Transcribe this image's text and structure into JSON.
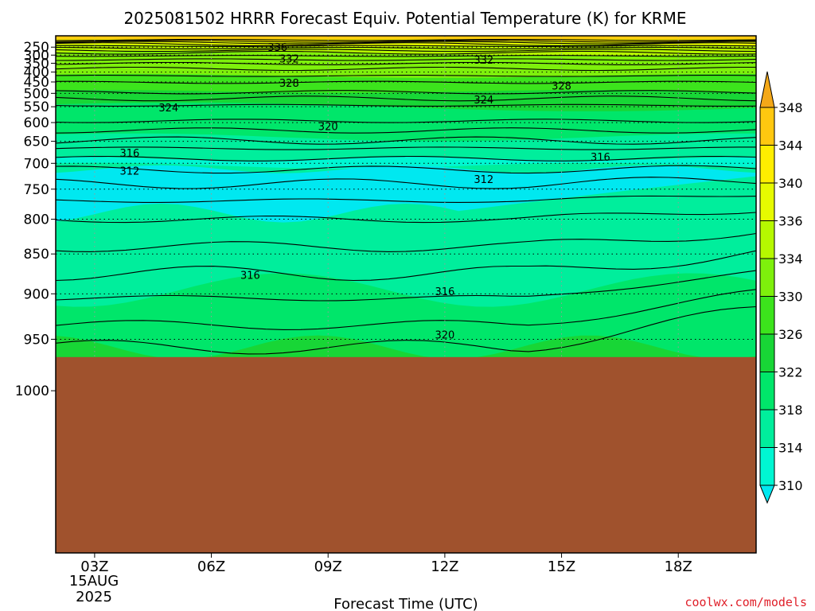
{
  "chart_data": {
    "type": "heatmap",
    "title": "2025081502 HRRR Forecast Equiv. Potential Temperature (K) for KRME",
    "xlabel": "Forecast Time (UTC)",
    "ylabel": "",
    "x_ticks": [
      "03Z",
      "06Z",
      "09Z",
      "12Z",
      "15Z",
      "18Z"
    ],
    "x_hours": [
      3,
      6,
      9,
      12,
      15,
      18
    ],
    "x_range_hours": [
      2,
      20
    ],
    "date_label": [
      "15AUG",
      "2025"
    ],
    "y_ticks": [
      250,
      300,
      350,
      400,
      450,
      500,
      550,
      600,
      650,
      700,
      750,
      800,
      850,
      900,
      950,
      1000
    ],
    "y_range": [
      200,
      1000
    ],
    "y_scale": "log-pressure",
    "surface_pressure_hPa": 968,
    "colorbar": {
      "levels": [
        310,
        314,
        318,
        322,
        326,
        330,
        334,
        336,
        340,
        344,
        348
      ],
      "labels": [
        "310",
        "314",
        "318",
        "322",
        "326",
        "330",
        "334",
        "336",
        "340",
        "344",
        "348"
      ],
      "colors": [
        "#00e8f0",
        "#00f6d2",
        "#00ee9c",
        "#00e66a",
        "#18d636",
        "#3ce41c",
        "#7ef00c",
        "#b6f800",
        "#e6fa00",
        "#ffee00",
        "#ffc810",
        "#f4a818"
      ]
    },
    "contour_labels": [
      {
        "value": "336",
        "hour": 7.7,
        "p": 250
      },
      {
        "value": "332",
        "hour": 8.0,
        "p": 320
      },
      {
        "value": "332",
        "hour": 13.0,
        "p": 329
      },
      {
        "value": "328",
        "hour": 8.0,
        "p": 454
      },
      {
        "value": "328",
        "hour": 15.0,
        "p": 467
      },
      {
        "value": "324",
        "hour": 4.9,
        "p": 552
      },
      {
        "value": "324",
        "hour": 13.0,
        "p": 524
      },
      {
        "value": "320",
        "hour": 9.0,
        "p": 610
      },
      {
        "value": "316",
        "hour": 3.9,
        "p": 677
      },
      {
        "value": "316",
        "hour": 16.0,
        "p": 686
      },
      {
        "value": "312",
        "hour": 3.9,
        "p": 715
      },
      {
        "value": "312",
        "hour": 13.0,
        "p": 731
      },
      {
        "value": "316",
        "hour": 7.0,
        "p": 877
      },
      {
        "value": "316",
        "hour": 12.0,
        "p": 897
      },
      {
        "value": "320",
        "hour": 12.0,
        "p": 945
      }
    ],
    "grid": "dotted",
    "legend": "colorbar-right",
    "ground_color": "#a0522d"
  },
  "credit": "coolwx.com/models"
}
